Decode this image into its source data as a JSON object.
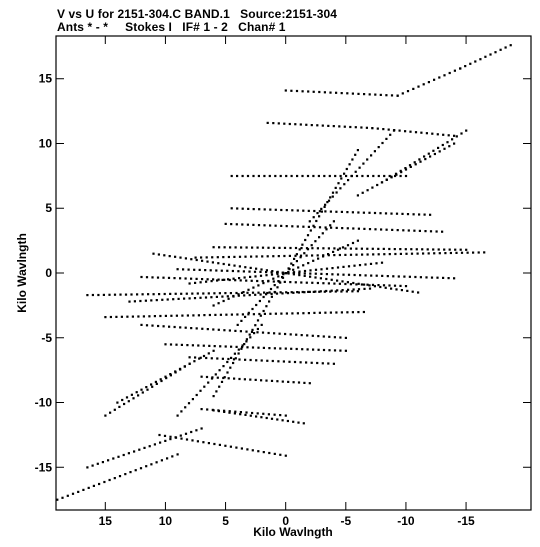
{
  "header": {
    "line1": "V vs U for 2151-304.C BAND.1   Source:2151-304",
    "line2": "Ants * - *     Stokes I   IF# 1 - 2   Chan# 1"
  },
  "chart_data": {
    "type": "scatter",
    "title": "V vs U for 2151-304.C BAND.1   Source:2151-304",
    "subtitle": "Ants * - *     Stokes I   IF# 1 - 2   Chan# 1",
    "xlabel": "Kilo Wavlngth",
    "ylabel": "Kilo Wavlngth",
    "xlim": [
      19.1,
      -20.4
    ],
    "ylim": [
      -18.3,
      18.3
    ],
    "x_reversed": true,
    "x_ticks": [
      15,
      10,
      5,
      0,
      -5,
      -10,
      -15
    ],
    "x_tick_labels": [
      "15",
      "10",
      "5",
      "0",
      "-5",
      "-10",
      "-15"
    ],
    "y_ticks": [
      15,
      10,
      5,
      0,
      -5,
      -10,
      -15
    ],
    "y_tick_labels": [
      "15",
      "10",
      "5",
      "0",
      "-5",
      "-10",
      "-15"
    ],
    "grid": false,
    "marker_color": "#000000",
    "tracks": [
      {
        "x1": 0.0,
        "y1": 14.1,
        "x2": -9.3,
        "y2": 13.7
      },
      {
        "x1": -9.3,
        "y1": 13.7,
        "x2": -14.5,
        "y2": 15.8
      },
      {
        "x1": -14.5,
        "y1": 15.8,
        "x2": -18.7,
        "y2": 17.6
      },
      {
        "x1": 1.5,
        "y1": 11.6,
        "x2": -7.2,
        "y2": 11.2
      },
      {
        "x1": -7.2,
        "y1": 11.2,
        "x2": -14.0,
        "y2": 10.6
      },
      {
        "x1": 4.5,
        "y1": 7.5,
        "x2": -10.0,
        "y2": 7.5
      },
      {
        "x1": 4.5,
        "y1": 5.0,
        "x2": -12.0,
        "y2": 4.5
      },
      {
        "x1": 5.0,
        "y1": 3.8,
        "x2": -13.0,
        "y2": 3.2
      },
      {
        "x1": 6.0,
        "y1": 2.0,
        "x2": -15.0,
        "y2": 1.8
      },
      {
        "x1": 7.5,
        "y1": 1.2,
        "x2": -16.5,
        "y2": 1.6
      },
      {
        "x1": 9.0,
        "y1": 0.3,
        "x2": -14.0,
        "y2": -0.4
      },
      {
        "x1": 12.0,
        "y1": -0.3,
        "x2": -10.0,
        "y2": -1.0
      },
      {
        "x1": 16.5,
        "y1": -1.7,
        "x2": -6.0,
        "y2": -1.4
      },
      {
        "x1": 15.0,
        "y1": -3.4,
        "x2": -6.5,
        "y2": -3.0
      },
      {
        "x1": 13.0,
        "y1": -2.2,
        "x2": -7.0,
        "y2": -1.2
      },
      {
        "x1": 12.0,
        "y1": -4.0,
        "x2": -5.0,
        "y2": -5.0
      },
      {
        "x1": 10.0,
        "y1": -5.5,
        "x2": -5.0,
        "y2": -6.0
      },
      {
        "x1": 8.0,
        "y1": -6.5,
        "x2": -4.0,
        "y2": -7.0
      },
      {
        "x1": 7.0,
        "y1": -8.0,
        "x2": -2.0,
        "y2": -8.5
      },
      {
        "x1": 7.0,
        "y1": -10.5,
        "x2": 0.0,
        "y2": -11.0
      },
      {
        "x1": 6.0,
        "y1": -10.6,
        "x2": -1.5,
        "y2": -11.6
      },
      {
        "x1": 10.5,
        "y1": -12.5,
        "x2": 0.0,
        "y2": -14.1
      },
      {
        "x1": 16.5,
        "y1": -15.0,
        "x2": 7.0,
        "y2": -12.0
      },
      {
        "x1": 19.0,
        "y1": -17.5,
        "x2": 9.0,
        "y2": -14.0
      },
      {
        "x1": 14.0,
        "y1": -10.0,
        "x2": 6.0,
        "y2": -6.0
      },
      {
        "x1": 15.0,
        "y1": -11.0,
        "x2": 8.0,
        "y2": -7.0
      },
      {
        "x1": 9.0,
        "y1": -11.0,
        "x2": 2.0,
        "y2": -4.0
      },
      {
        "x1": 6.0,
        "y1": -9.5,
        "x2": 0.0,
        "y2": 0.0
      },
      {
        "x1": 0.0,
        "y1": 0.0,
        "x2": -6.0,
        "y2": 9.5
      },
      {
        "x1": -2.0,
        "y1": 4.0,
        "x2": -9.0,
        "y2": 11.0
      },
      {
        "x1": -6.0,
        "y1": 6.0,
        "x2": -14.0,
        "y2": 10.0
      },
      {
        "x1": -8.0,
        "y1": 7.0,
        "x2": -15.0,
        "y2": 11.0
      },
      {
        "x1": 11.0,
        "y1": 1.5,
        "x2": -11.0,
        "y2": -1.5
      },
      {
        "x1": 8.0,
        "y1": -0.8,
        "x2": -8.0,
        "y2": 0.8
      },
      {
        "x1": 6.0,
        "y1": -2.5,
        "x2": -6.0,
        "y2": 2.5
      },
      {
        "x1": 4.0,
        "y1": -4.0,
        "x2": -4.0,
        "y2": 4.0
      }
    ]
  }
}
